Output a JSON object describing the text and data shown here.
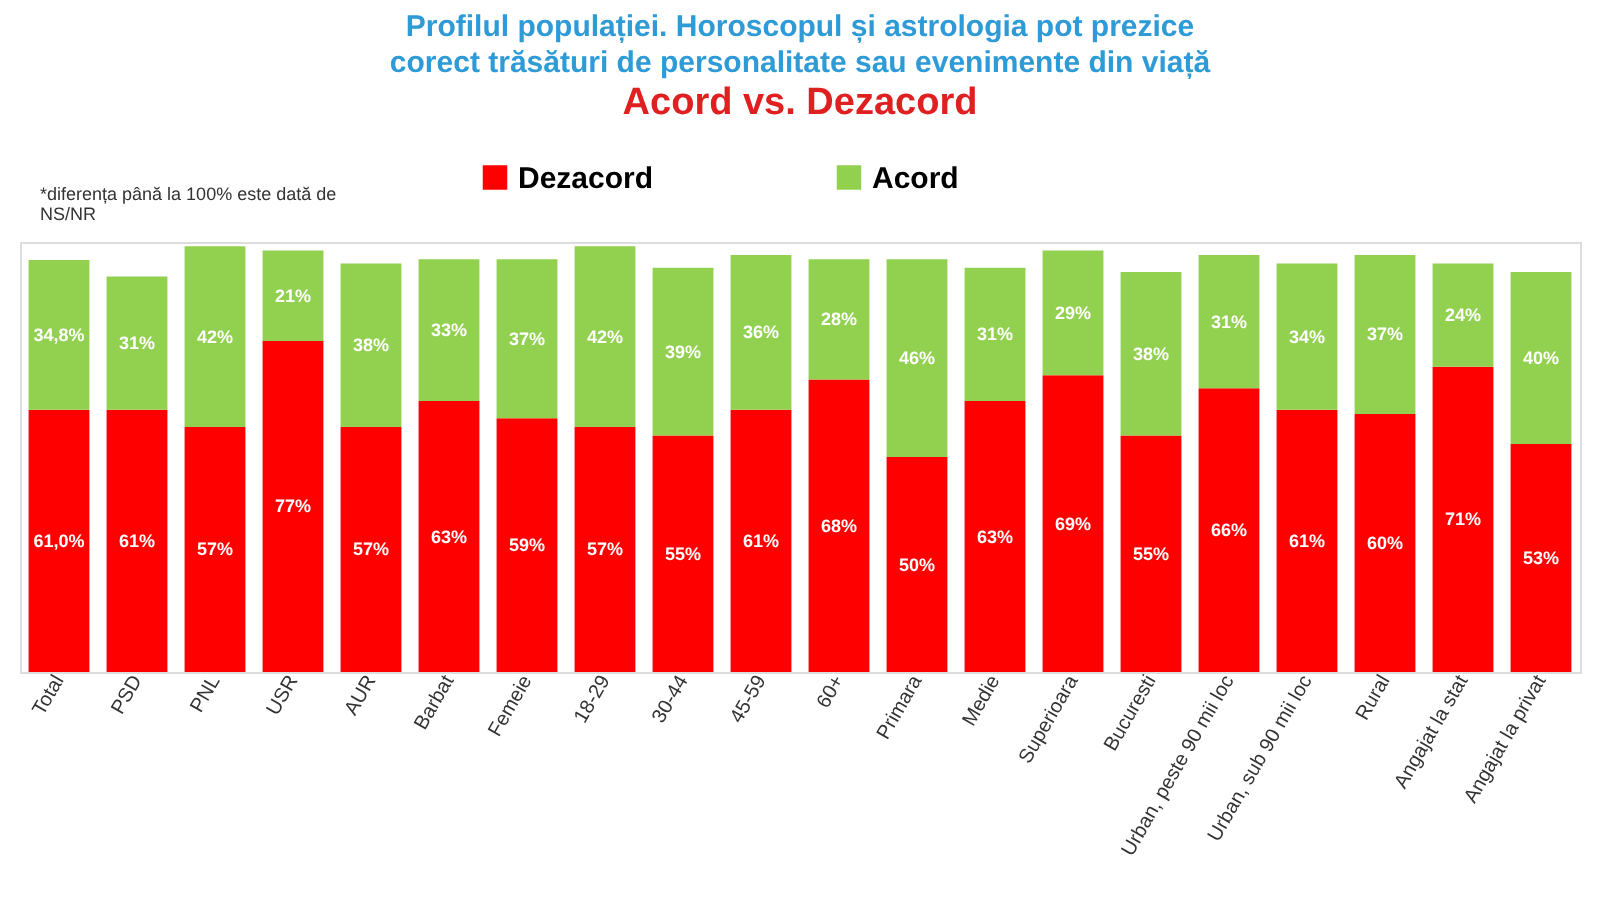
{
  "chart_data": {
    "type": "bar",
    "stacked": true,
    "title": "Profilul populației. Horoscopul și astrologia pot prezice corect trăsături de personalitate sau evenimente din viață",
    "subtitle": "Acord vs. Dezacord",
    "annotations": [
      "*diferența până la 100% este dată de NS/NR"
    ],
    "categories": [
      "Total",
      "PSD",
      "PNL",
      "USR",
      "AUR",
      "Barbat",
      "Femeie",
      "18-29",
      "30-44",
      "45-59",
      "60+",
      "Primara",
      "Medie",
      "Superioara",
      "Bucuresti",
      "Urban, peste 90 mii loc",
      "Urban, sub 90 mii loc",
      "Rural",
      "Angajat la stat",
      "Angajat la privat"
    ],
    "series": [
      {
        "name": "Dezacord",
        "color": "#ff0000",
        "values": [
          61.0,
          61,
          57,
          77,
          57,
          63,
          59,
          57,
          55,
          61,
          68,
          50,
          63,
          69,
          55,
          66,
          61,
          60,
          71,
          53
        ],
        "value_labels": [
          "61,0%",
          "61%",
          "57%",
          "77%",
          "57%",
          "63%",
          "59%",
          "57%",
          "55%",
          "61%",
          "68%",
          "50%",
          "63%",
          "69%",
          "55%",
          "66%",
          "61%",
          "60%",
          "71%",
          "53%"
        ]
      },
      {
        "name": "Acord",
        "color": "#92d050",
        "values": [
          34.8,
          31,
          42,
          21,
          38,
          33,
          37,
          42,
          39,
          36,
          28,
          46,
          31,
          29,
          38,
          31,
          34,
          37,
          24,
          40
        ],
        "value_labels": [
          "34,8%",
          "31%",
          "42%",
          "21%",
          "38%",
          "33%",
          "37%",
          "42%",
          "39%",
          "36%",
          "28%",
          "46%",
          "31%",
          "29%",
          "38%",
          "31%",
          "34%",
          "37%",
          "24%",
          "40%"
        ]
      }
    ],
    "legend": "top",
    "tick_labels": "x"
  }
}
